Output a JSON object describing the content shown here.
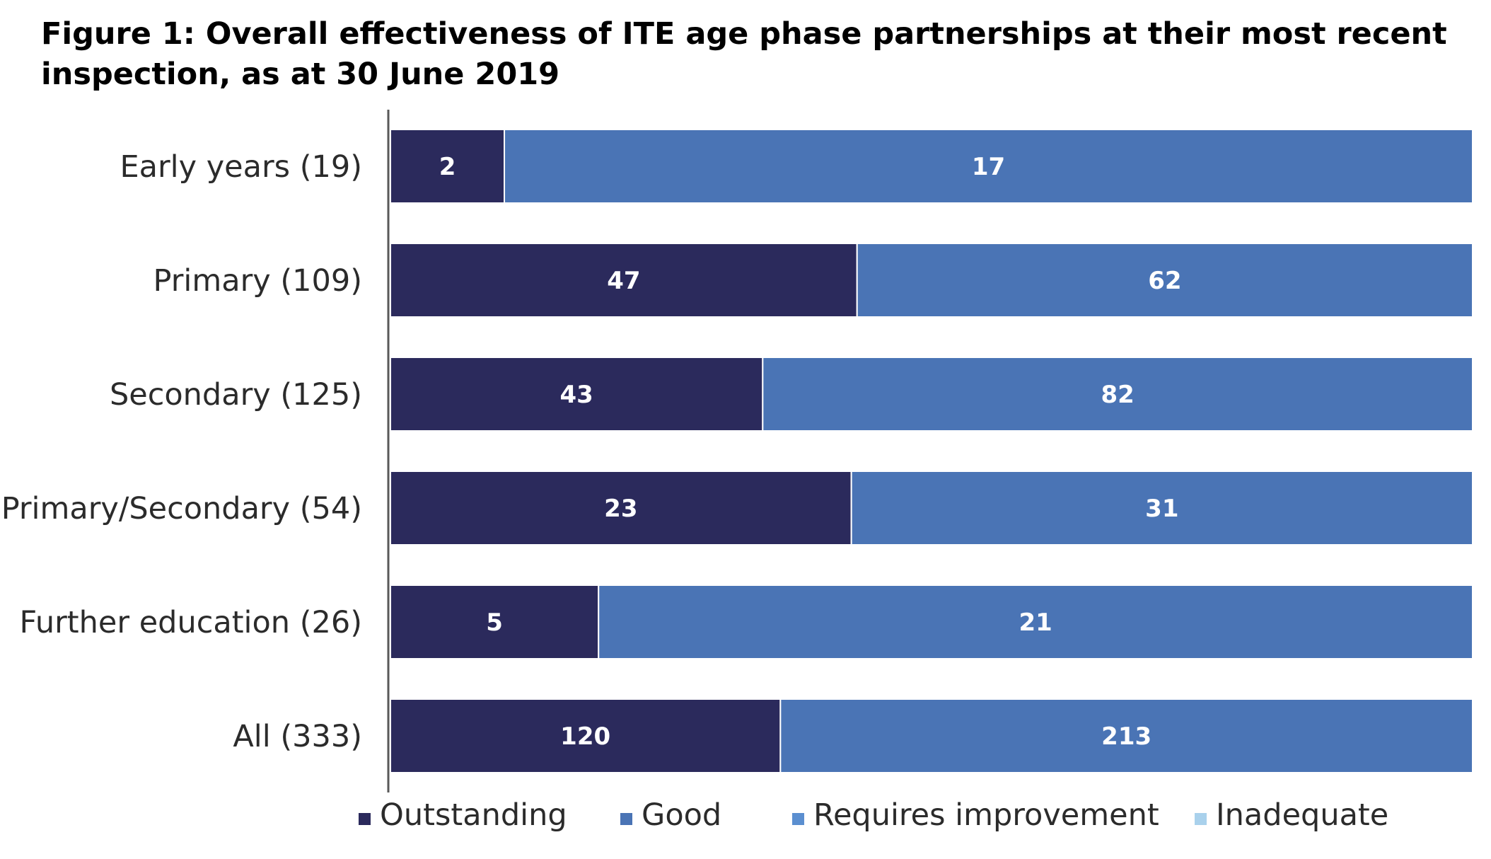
{
  "header": {
    "title_line1": "Figure 1: Overall effectiveness of ITE age phase partnerships at their most recent",
    "title_line2": "inspection, as at 30 June 2019"
  },
  "colors": {
    "outstanding": "#2b2a5c",
    "good": "#4a74b5",
    "requires_improvement": "#5b8fd0",
    "inadequate": "#a9d1ec",
    "axis": "#595959"
  },
  "chart_data": {
    "type": "bar",
    "orientation": "horizontal",
    "stacked": "100%",
    "title": "Figure 1: Overall effectiveness of ITE age phase partnerships at their most recent inspection, as at 30 June 2019",
    "categories": [
      "Early years (19)",
      "Primary (109)",
      "Secondary (125)",
      "Primary/Secondary (54)",
      "Further education (26)",
      "All (333)"
    ],
    "series": [
      {
        "name": "Outstanding",
        "values": [
          2,
          47,
          43,
          23,
          5,
          120
        ]
      },
      {
        "name": "Good",
        "values": [
          17,
          62,
          82,
          31,
          21,
          213
        ]
      },
      {
        "name": "Requires improvement",
        "values": [
          0,
          0,
          0,
          0,
          0,
          0
        ]
      },
      {
        "name": "Inadequate",
        "values": [
          0,
          0,
          0,
          0,
          0,
          0
        ]
      }
    ],
    "data_labels": true,
    "grid": false,
    "legend_position": "bottom"
  }
}
